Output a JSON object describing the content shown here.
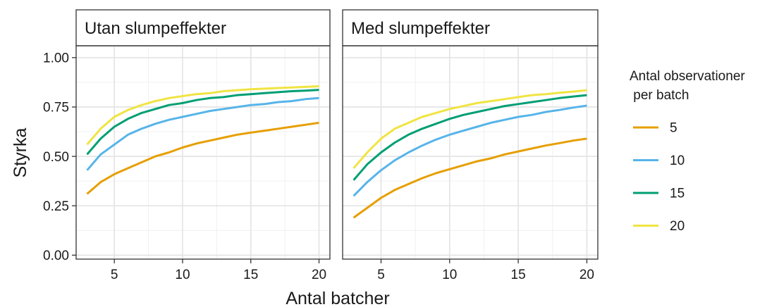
{
  "chart_data": {
    "type": "line",
    "xlabel": "Antal batcher",
    "ylabel": "Styrka",
    "xlim": [
      2.2,
      20.8
    ],
    "ylim": [
      -0.02,
      1.06
    ],
    "x_ticks": [
      5,
      10,
      15,
      20
    ],
    "x_minor_ticks": [
      7.5,
      12.5,
      17.5
    ],
    "y_ticks": [
      "0.00",
      "0.25",
      "0.50",
      "0.75",
      "1.00"
    ],
    "y_tick_values": [
      0,
      0.25,
      0.5,
      0.75,
      1.0
    ],
    "y_minor_ticks": [
      0.125,
      0.375,
      0.625,
      0.875
    ],
    "x": [
      3,
      4,
      5,
      6,
      7,
      8,
      9,
      10,
      11,
      12,
      13,
      14,
      15,
      16,
      17,
      18,
      19,
      20
    ],
    "grid": true,
    "legend": {
      "title_line1": "Antal observationer",
      "title_line2": " per batch",
      "placement": "right",
      "entries": [
        {
          "label": "5",
          "color": "#E69F00"
        },
        {
          "label": "10",
          "color": "#56B4E9"
        },
        {
          "label": "15",
          "color": "#009E73"
        },
        {
          "label": "20",
          "color": "#F0E442"
        }
      ]
    },
    "panels": [
      {
        "strip": "Utan slumpeffekter",
        "series": [
          {
            "name": "5",
            "color": "#E69F00",
            "values": [
              0.31,
              0.37,
              0.41,
              0.44,
              0.47,
              0.5,
              0.52,
              0.545,
              0.565,
              0.58,
              0.595,
              0.61,
              0.62,
              0.63,
              0.64,
              0.65,
              0.66,
              0.67
            ]
          },
          {
            "name": "10",
            "color": "#56B4E9",
            "values": [
              0.43,
              0.51,
              0.56,
              0.61,
              0.64,
              0.665,
              0.685,
              0.7,
              0.715,
              0.73,
              0.74,
              0.75,
              0.76,
              0.765,
              0.775,
              0.78,
              0.79,
              0.795
            ]
          },
          {
            "name": "15",
            "color": "#009E73",
            "values": [
              0.51,
              0.59,
              0.65,
              0.69,
              0.72,
              0.74,
              0.76,
              0.77,
              0.785,
              0.795,
              0.8,
              0.81,
              0.815,
              0.82,
              0.825,
              0.83,
              0.833,
              0.837
            ]
          },
          {
            "name": "20",
            "color": "#F0E442",
            "values": [
              0.56,
              0.64,
              0.7,
              0.735,
              0.76,
              0.78,
              0.795,
              0.805,
              0.815,
              0.82,
              0.83,
              0.835,
              0.84,
              0.843,
              0.846,
              0.849,
              0.852,
              0.855
            ]
          }
        ]
      },
      {
        "strip": "Med slumpeffekter",
        "series": [
          {
            "name": "5",
            "color": "#E69F00",
            "values": [
              0.19,
              0.24,
              0.29,
              0.33,
              0.36,
              0.39,
              0.415,
              0.435,
              0.455,
              0.475,
              0.49,
              0.51,
              0.525,
              0.54,
              0.555,
              0.567,
              0.58,
              0.59
            ]
          },
          {
            "name": "10",
            "color": "#56B4E9",
            "values": [
              0.3,
              0.37,
              0.43,
              0.48,
              0.52,
              0.555,
              0.585,
              0.61,
              0.63,
              0.65,
              0.67,
              0.685,
              0.7,
              0.71,
              0.725,
              0.735,
              0.747,
              0.757
            ]
          },
          {
            "name": "15",
            "color": "#009E73",
            "values": [
              0.38,
              0.46,
              0.52,
              0.57,
              0.61,
              0.64,
              0.665,
              0.69,
              0.71,
              0.725,
              0.74,
              0.755,
              0.765,
              0.775,
              0.785,
              0.795,
              0.803,
              0.81
            ]
          },
          {
            "name": "20",
            "color": "#F0E442",
            "values": [
              0.44,
              0.52,
              0.59,
              0.64,
              0.67,
              0.7,
              0.72,
              0.74,
              0.755,
              0.77,
              0.78,
              0.79,
              0.8,
              0.81,
              0.815,
              0.822,
              0.828,
              0.835
            ]
          }
        ]
      }
    ]
  }
}
